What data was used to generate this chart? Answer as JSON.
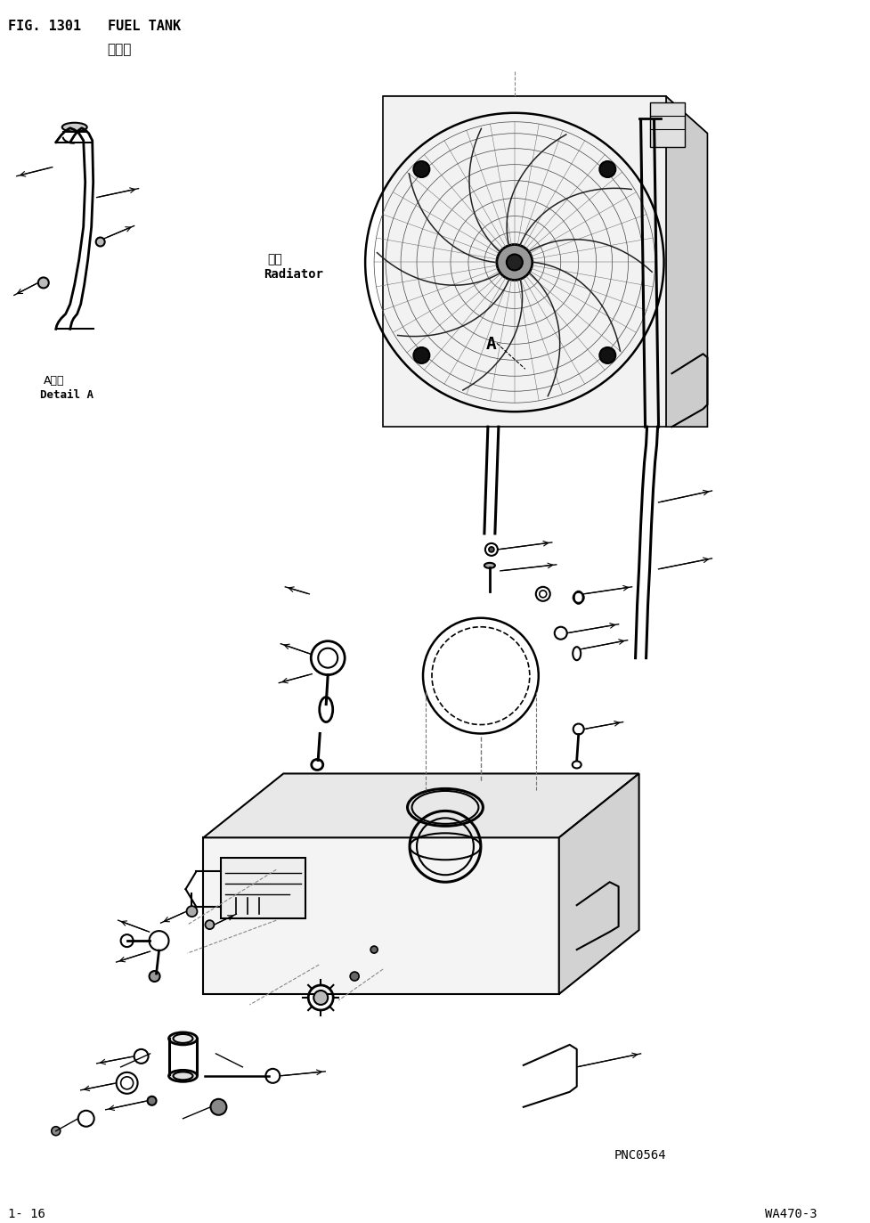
{
  "title_line1": "FIG. 1301",
  "title_line2": "FUEL TANK",
  "title_chinese": "燃油筱",
  "label_radiator_chinese": "水筱",
  "label_radiator_english": "Radiator",
  "label_detail_chinese": "A详组",
  "label_detail_english": "Detail A",
  "label_A": "A",
  "footer_left": "1- 16",
  "footer_right": "WA470-3",
  "footer_code": "PNC0564",
  "bg_color": "#ffffff",
  "line_color": "#000000",
  "fig_width": 9.77,
  "fig_height": 13.73,
  "dpi": 100
}
